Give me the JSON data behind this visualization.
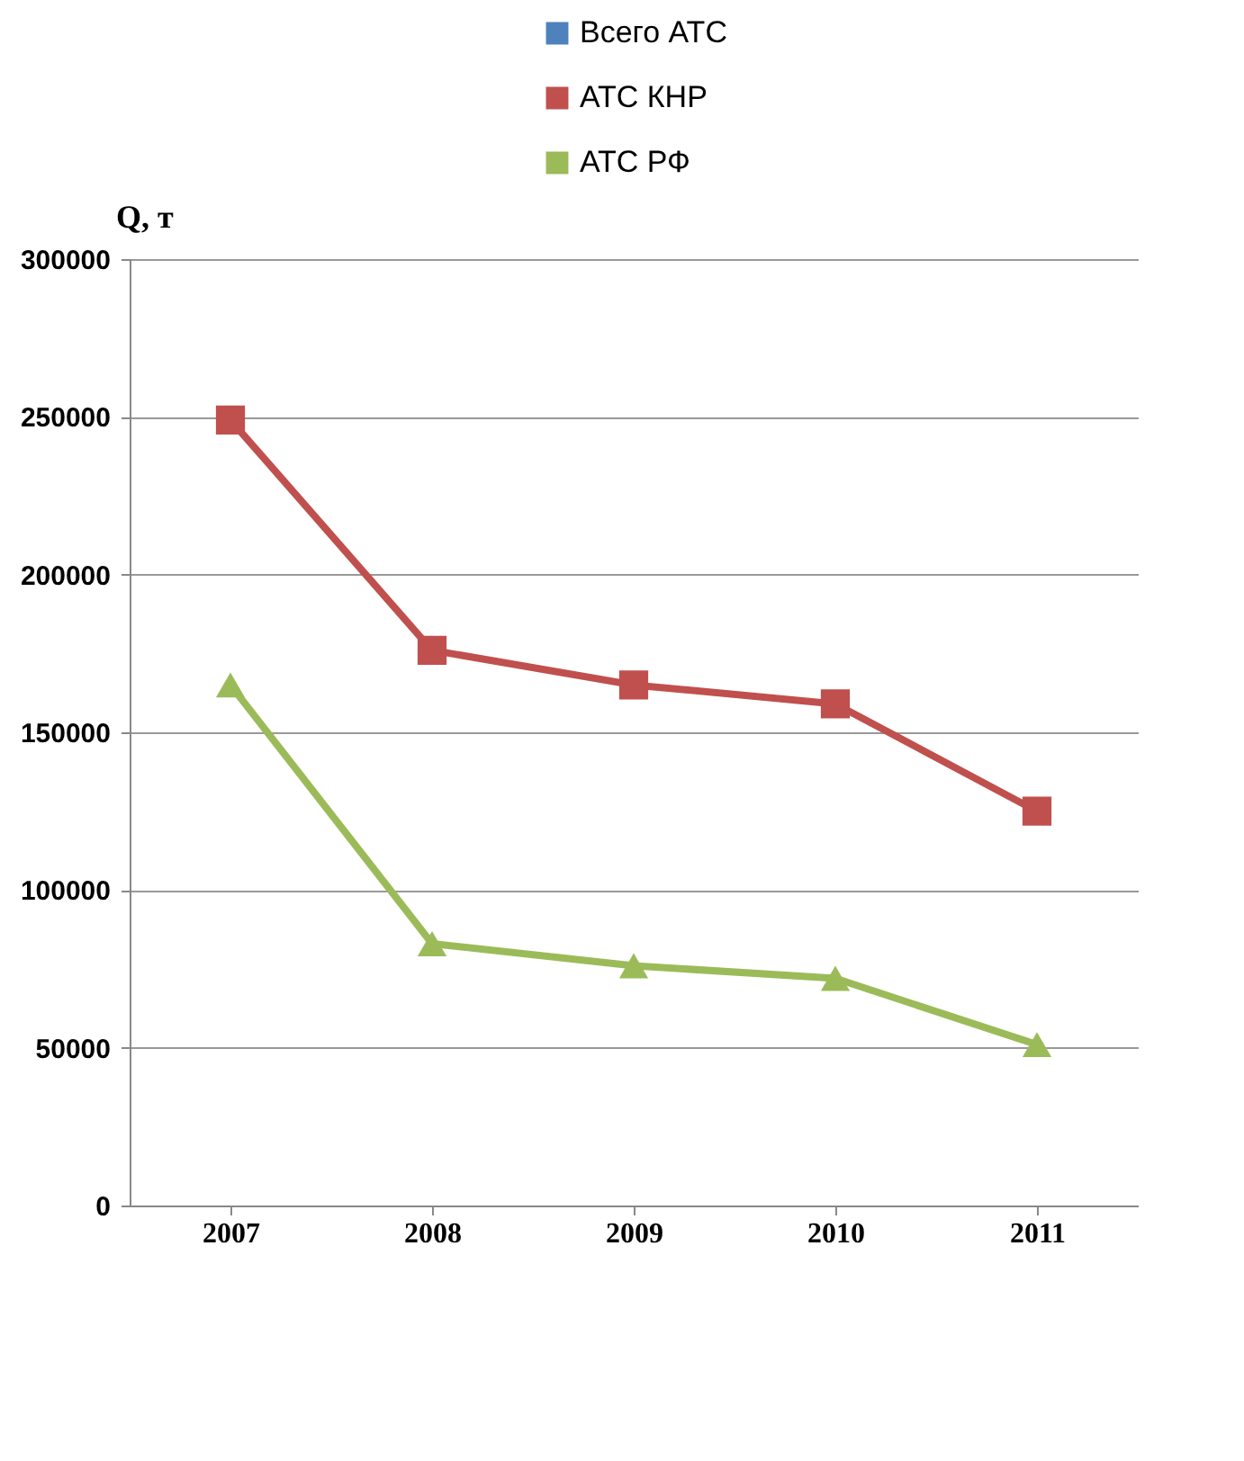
{
  "chart_data": {
    "type": "line",
    "ylabel": "Q, т",
    "categories": [
      "2007",
      "2008",
      "2009",
      "2010",
      "2011"
    ],
    "series": [
      {
        "name": "Всего АТС",
        "color": "#4f81bd",
        "values": [
          null,
          null,
          null,
          null,
          null
        ]
      },
      {
        "name": "АТС КНР",
        "color": "#c0504d",
        "marker": "square",
        "values": [
          249000,
          176000,
          165000,
          159000,
          125000
        ]
      },
      {
        "name": "АТС РФ",
        "color": "#9bbb59",
        "marker": "triangle",
        "values": [
          165000,
          83000,
          76000,
          72000,
          51000
        ]
      }
    ],
    "ylim": [
      0,
      300000
    ],
    "yticks": [
      0,
      50000,
      100000,
      150000,
      200000,
      250000,
      300000
    ],
    "grid": "y",
    "legend": "top"
  }
}
